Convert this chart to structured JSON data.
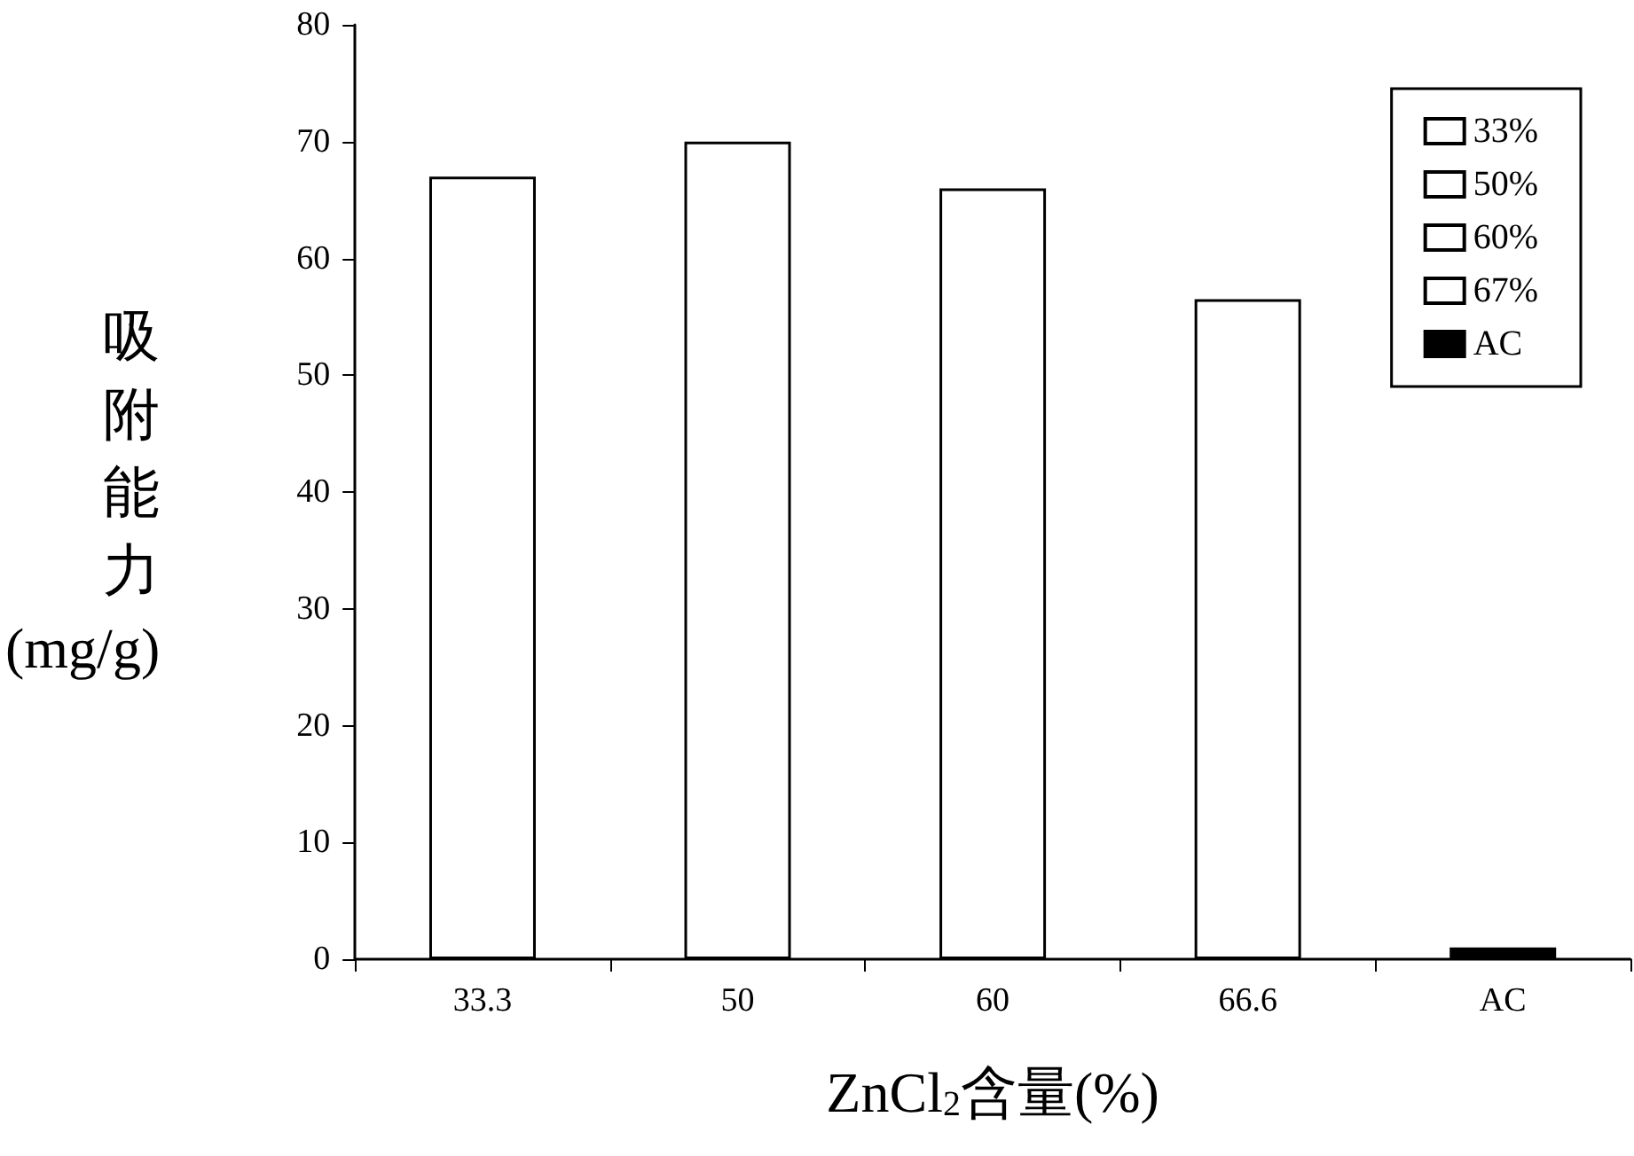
{
  "chart_data": {
    "type": "bar",
    "xlabel": "ZnCl$_{2}$含量(%)",
    "ylabel": "吸附能力(mg/g)",
    "categories": [
      "33.3",
      "50",
      "60",
      "66.6",
      "AC"
    ],
    "series": [
      {
        "name": "33%",
        "color": "#ffffff",
        "values": [
          67,
          null,
          null,
          null,
          null
        ]
      },
      {
        "name": "50%",
        "color": "#ffffff",
        "values": [
          null,
          70,
          null,
          null,
          null
        ]
      },
      {
        "name": "60%",
        "color": "#ffffff",
        "values": [
          null,
          null,
          66,
          null,
          null
        ]
      },
      {
        "name": "67%",
        "color": "#ffffff",
        "values": [
          null,
          null,
          null,
          56.5,
          null
        ]
      },
      {
        "name": "AC",
        "color": "#000000",
        "values": [
          null,
          null,
          null,
          null,
          1
        ]
      }
    ],
    "ylim": [
      0,
      80
    ],
    "yticks": [
      0,
      10,
      20,
      30,
      40,
      50,
      60,
      70,
      80
    ],
    "grid": false,
    "legend": "top right"
  }
}
